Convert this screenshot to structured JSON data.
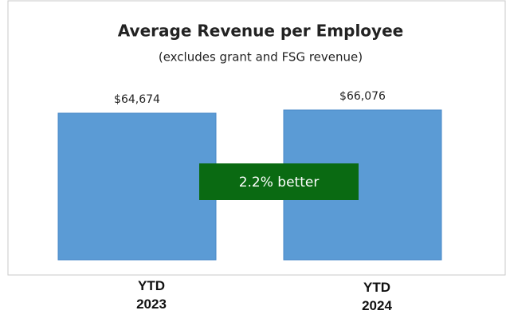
{
  "chart_data": {
    "type": "bar",
    "title": "Average Revenue per Employee",
    "subtitle": "(excludes grant and FSG revenue)",
    "categories": [
      "YTD 2023",
      "YTD 2024"
    ],
    "values": [
      64674,
      66076
    ],
    "value_labels": [
      "$64,674",
      "$66,076"
    ],
    "color": "#5b9bd5",
    "annotation": "2.2% better"
  }
}
